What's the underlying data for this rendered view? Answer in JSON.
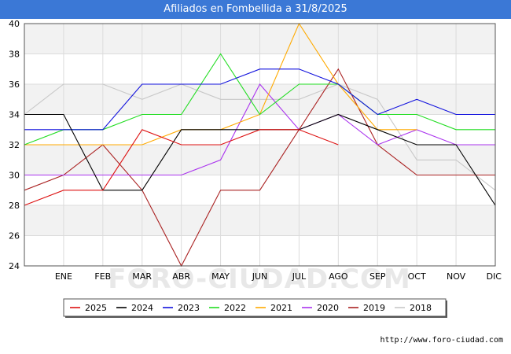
{
  "header": {
    "title": "Afiliados en Fombellida a 31/8/2025"
  },
  "source": {
    "url": "http://www.foro-ciudad.com"
  },
  "watermark": {
    "text": "FORO-CIUDAD.COM"
  },
  "chart_data": {
    "type": "line",
    "title": "Afiliados en Fombellida a 31/8/2025",
    "xlabel": "",
    "ylabel": "",
    "categories": [
      "",
      "ENE",
      "FEB",
      "MAR",
      "ABR",
      "MAY",
      "JUN",
      "JUL",
      "AGO",
      "SEP",
      "OCT",
      "NOV",
      "DIC"
    ],
    "ylim": [
      24,
      40
    ],
    "yticks": [
      24,
      26,
      28,
      30,
      32,
      34,
      36,
      38,
      40
    ],
    "grid": true,
    "legend_position": "bottom",
    "series": [
      {
        "name": "2025",
        "color": "#dd1111",
        "values": [
          28,
          29,
          29,
          33,
          32,
          32,
          33,
          33,
          32,
          null,
          null,
          null,
          null
        ]
      },
      {
        "name": "2024",
        "color": "#000000",
        "values": [
          34,
          34,
          29,
          29,
          33,
          33,
          33,
          33,
          34,
          33,
          32,
          32,
          28
        ]
      },
      {
        "name": "2023",
        "color": "#1111dd",
        "values": [
          33,
          33,
          33,
          36,
          36,
          36,
          37,
          37,
          36,
          34,
          35,
          34,
          34
        ]
      },
      {
        "name": "2022",
        "color": "#22dd22",
        "values": [
          32,
          33,
          33,
          34,
          34,
          38,
          34,
          36,
          36,
          34,
          34,
          33,
          33
        ]
      },
      {
        "name": "2021",
        "color": "#ffaa00",
        "values": [
          32,
          32,
          32,
          32,
          33,
          33,
          34,
          40,
          36,
          33,
          33,
          null,
          null
        ]
      },
      {
        "name": "2020",
        "color": "#aa33ee",
        "values": [
          30,
          30,
          30,
          30,
          30,
          31,
          36,
          33,
          34,
          32,
          33,
          32,
          32
        ]
      },
      {
        "name": "2019",
        "color": "#aa2222",
        "values": [
          29,
          30,
          32,
          29,
          24,
          29,
          29,
          33,
          37,
          32,
          30,
          30,
          30
        ]
      },
      {
        "name": "2018",
        "color": "#c8c8c8",
        "values": [
          34,
          36,
          36,
          35,
          36,
          35,
          35,
          35,
          36,
          35,
          31,
          31,
          29
        ]
      }
    ]
  }
}
